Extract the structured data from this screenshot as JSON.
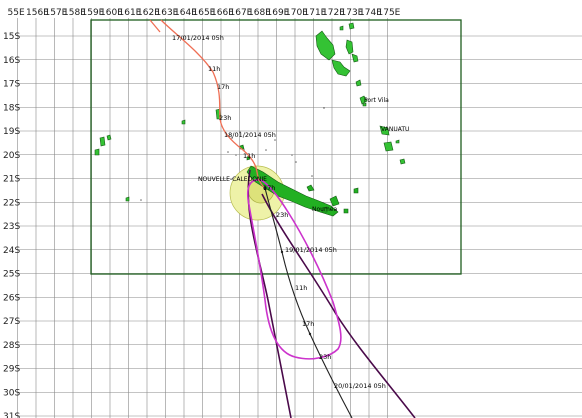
{
  "map": {
    "lon_labels": [
      "55E",
      "156E",
      "157E",
      "158E",
      "159E",
      "160E",
      "161E",
      "162E",
      "163E",
      "164E",
      "165E",
      "166E",
      "167E",
      "168E",
      "169E",
      "170E",
      "171E",
      "172E",
      "173E",
      "174E",
      "175E"
    ],
    "lat_labels": [
      "15S",
      "16S",
      "17S",
      "18S",
      "19S",
      "20S",
      "21S",
      "22S",
      "23S",
      "24S",
      "25S",
      "26S",
      "27S",
      "28S",
      "29S",
      "30S",
      "31S"
    ],
    "place_labels": {
      "new_caledonia": "NOUVELLE-CALEDONIE",
      "vanuatu": "VANUATU",
      "port_vila": "Port Vila",
      "noumea": "Noumea"
    },
    "track_labels": {
      "t_170105": "17/01/2014 05h",
      "t_17_11h": "11h",
      "t_17_17h": "17h",
      "t_17_23h": "23h",
      "t_180105": "18/01/2014 05h",
      "t_18_11h": "11h",
      "t_18_17h": "17h",
      "t_18_23h": "23h",
      "t_190105": "19/01/2014 05h",
      "t_19_11h": "11h",
      "t_19_17h": "17h",
      "t_19_23h": "23h",
      "t_200105": "20/01/2014 05h"
    },
    "colors": {
      "grid": "#888888",
      "box": "#1e5e1e",
      "land_vanuatu": "#34c234",
      "land_caledonia": "#22b022",
      "land_outline": "#145a14",
      "observed_track": "#ef6f55",
      "forecast_track": "#222222",
      "uncertainty_cone": "#cc33cc",
      "cone_edges": "#4a0a4a",
      "wind_circle_outer": "#e9ee9c",
      "wind_circle_inner": "#d5dc6a"
    }
  }
}
